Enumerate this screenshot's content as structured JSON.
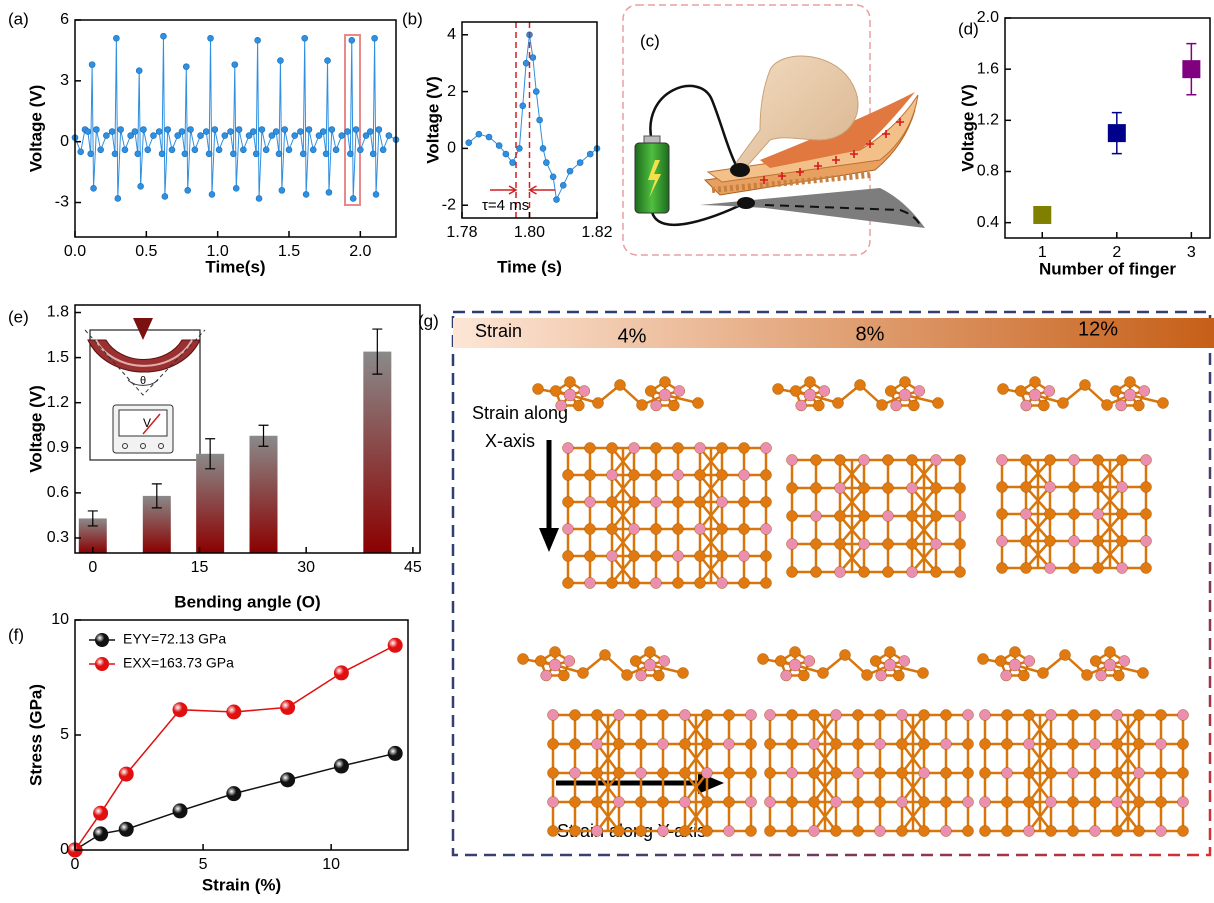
{
  "panel_labels": [
    "(a)",
    "(b)",
    "(c)",
    "(d)",
    "(e)",
    "(f)",
    "(g)"
  ],
  "strain_panel": {
    "header": "Strain",
    "levels": [
      "4%",
      "8%",
      "12%"
    ],
    "x_axis_label": [
      "Strain along",
      "X-axis"
    ],
    "y_axis_label": "Strain along  Y-axis"
  },
  "chart_data": [
    {
      "type": "line",
      "xlabel": "Time(s)",
      "ylabel": "Voltage (V)",
      "xlim": [
        0,
        2.25
      ],
      "ylim": [
        -4.7,
        6
      ],
      "xticks": [
        {
          "value": 0,
          "label": "0.0"
        },
        0.5,
        {
          "value": 1,
          "label": "1.0"
        },
        1.5,
        {
          "value": 2,
          "label": "2.0"
        }
      ],
      "yticks": [
        -3,
        0,
        3,
        6
      ],
      "x": [
        0,
        0.04,
        0.07,
        0.09,
        0.11,
        0.12,
        0.13,
        0.15,
        0.18,
        0.22,
        0.26,
        0.28,
        0.29,
        0.3,
        0.32,
        0.35,
        0.39,
        0.42,
        0.44,
        0.45,
        0.46,
        0.48,
        0.51,
        0.55,
        0.59,
        0.61,
        0.62,
        0.63,
        0.65,
        0.68,
        0.72,
        0.75,
        0.77,
        0.78,
        0.79,
        0.81,
        0.84,
        0.88,
        0.92,
        0.94,
        0.95,
        0.96,
        0.98,
        1.01,
        1.05,
        1.09,
        1.11,
        1.12,
        1.13,
        1.15,
        1.18,
        1.22,
        1.25,
        1.27,
        1.28,
        1.29,
        1.31,
        1.34,
        1.38,
        1.41,
        1.43,
        1.44,
        1.45,
        1.47,
        1.5,
        1.54,
        1.58,
        1.6,
        1.61,
        1.62,
        1.64,
        1.67,
        1.71,
        1.74,
        1.76,
        1.77,
        1.78,
        1.8,
        1.83,
        1.87,
        1.91,
        1.93,
        1.94,
        1.95,
        1.97,
        2.0,
        2.04,
        2.07,
        2.09,
        2.1,
        2.11,
        2.13,
        2.16,
        2.2,
        2.25
      ],
      "series": [
        {
          "color": "#2f8fe0",
          "marker": "dot",
          "values": [
            0.2,
            -0.5,
            0.6,
            0.5,
            -0.6,
            3.8,
            -2.3,
            0.6,
            -0.4,
            0.3,
            0.5,
            -0.6,
            5.1,
            -2.8,
            0.6,
            -0.4,
            0.3,
            0.5,
            -0.6,
            3.5,
            -2.2,
            0.6,
            -0.4,
            0.3,
            0.5,
            -0.6,
            5.2,
            -2.7,
            0.6,
            -0.4,
            0.3,
            0.5,
            -0.6,
            3.7,
            -2.4,
            0.6,
            -0.4,
            0.3,
            0.5,
            -0.6,
            5.1,
            -2.6,
            0.6,
            -0.4,
            0.3,
            0.5,
            -0.6,
            3.8,
            -2.3,
            0.6,
            -0.4,
            0.3,
            0.5,
            -0.6,
            5.0,
            -2.8,
            0.6,
            -0.4,
            0.3,
            0.5,
            -0.6,
            4.0,
            -2.4,
            0.6,
            -0.4,
            0.3,
            0.5,
            -0.6,
            5.1,
            -2.6,
            0.6,
            -0.4,
            0.3,
            0.5,
            -0.6,
            4.0,
            -2.5,
            0.6,
            -0.4,
            0.3,
            0.5,
            -0.6,
            5.0,
            -2.8,
            0.6,
            -0.4,
            0.3,
            0.5,
            -0.6,
            5.1,
            -2.6,
            0.6,
            -0.4,
            0.3,
            0.1
          ]
        }
      ]
    },
    {
      "type": "line",
      "xlabel": "Time (s)",
      "ylabel": "Voltage (V)",
      "xlim": [
        1.78,
        1.82
      ],
      "ylim": [
        -2.45,
        4.45
      ],
      "xticks": [
        1.78,
        {
          "value": 1.8,
          "label": "1.80"
        },
        1.82
      ],
      "yticks": [
        -2,
        0,
        2,
        4
      ],
      "vlines": [
        1.796,
        1.8
      ],
      "annotation": "τ=4 ms",
      "x": [
        1.782,
        1.785,
        1.788,
        1.791,
        1.793,
        1.795,
        1.797,
        1.798,
        1.799,
        1.8,
        1.801,
        1.802,
        1.803,
        1.804,
        1.805,
        1.807,
        1.808,
        1.81,
        1.812,
        1.815,
        1.818,
        1.82
      ],
      "series": [
        {
          "color": "#2f8fe0",
          "marker": "dot",
          "values": [
            0.2,
            0.5,
            0.4,
            0.1,
            -0.2,
            -0.5,
            0,
            1.5,
            3,
            4,
            3.2,
            2,
            1,
            0,
            -0.5,
            -1,
            -1.8,
            -1.3,
            -0.8,
            -0.5,
            -0.2,
            0
          ]
        }
      ]
    },
    {
      "type": "scatter",
      "xlabel": "Number of finger",
      "ylabel": "Voltage (V)",
      "xlim": [
        0.5,
        3.25
      ],
      "ylim": [
        0.28,
        2.0
      ],
      "xticks": [
        1,
        2,
        3
      ],
      "yticks": [
        0.4,
        0.8,
        1.2,
        1.6,
        {
          "value": 2,
          "label": "2.0"
        }
      ],
      "x": [
        1,
        2,
        3
      ],
      "series": [
        {
          "values": [
            0.46,
            1.1,
            1.6
          ],
          "errors": [
            0.03,
            0.16,
            0.2
          ],
          "colors": [
            "#808000",
            "#00008b",
            "#800080"
          ]
        }
      ]
    },
    {
      "type": "bar",
      "xlabel": "Bending angle (O)",
      "ylabel": "Voltage (V)",
      "xlim": [
        -2.5,
        46
      ],
      "ylim": [
        0.2,
        1.85
      ],
      "xticks": [
        0,
        15,
        30,
        45
      ],
      "yticks": [
        0.3,
        0.6,
        0.9,
        1.2,
        1.5,
        1.8
      ],
      "x": [
        0,
        9,
        16.5,
        24,
        40
      ],
      "inset_labels": [
        "θ",
        "V"
      ],
      "series": [
        {
          "values": [
            0.43,
            0.58,
            0.86,
            0.98,
            1.54
          ],
          "errors": [
            0.05,
            0.08,
            0.1,
            0.07,
            0.15
          ],
          "color": "#8b0000",
          "top_color": "#8a8a8a"
        }
      ]
    },
    {
      "type": "line",
      "xlabel": "Strain (%)",
      "ylabel": "Stress (GPa)",
      "xlim": [
        0,
        13
      ],
      "ylim": [
        0,
        10
      ],
      "xticks": [
        0,
        5,
        10
      ],
      "yticks": [
        0,
        5,
        10
      ],
      "legend": "upper left",
      "x": [
        0,
        1,
        2,
        4.1,
        6.2,
        8.3,
        10.4,
        12.5
      ],
      "series": [
        {
          "name": "EYY=72.13 GPa",
          "color": "#111111",
          "marker": "ball",
          "values": [
            0,
            0.7,
            0.9,
            1.7,
            2.45,
            3.05,
            3.65,
            4.2
          ]
        },
        {
          "name": "EXX=163.73 GPa",
          "color": "#e01010",
          "marker": "ball",
          "values": [
            0,
            1.6,
            3.3,
            6.1,
            6.0,
            6.2,
            7.7,
            8.9
          ]
        }
      ]
    }
  ]
}
